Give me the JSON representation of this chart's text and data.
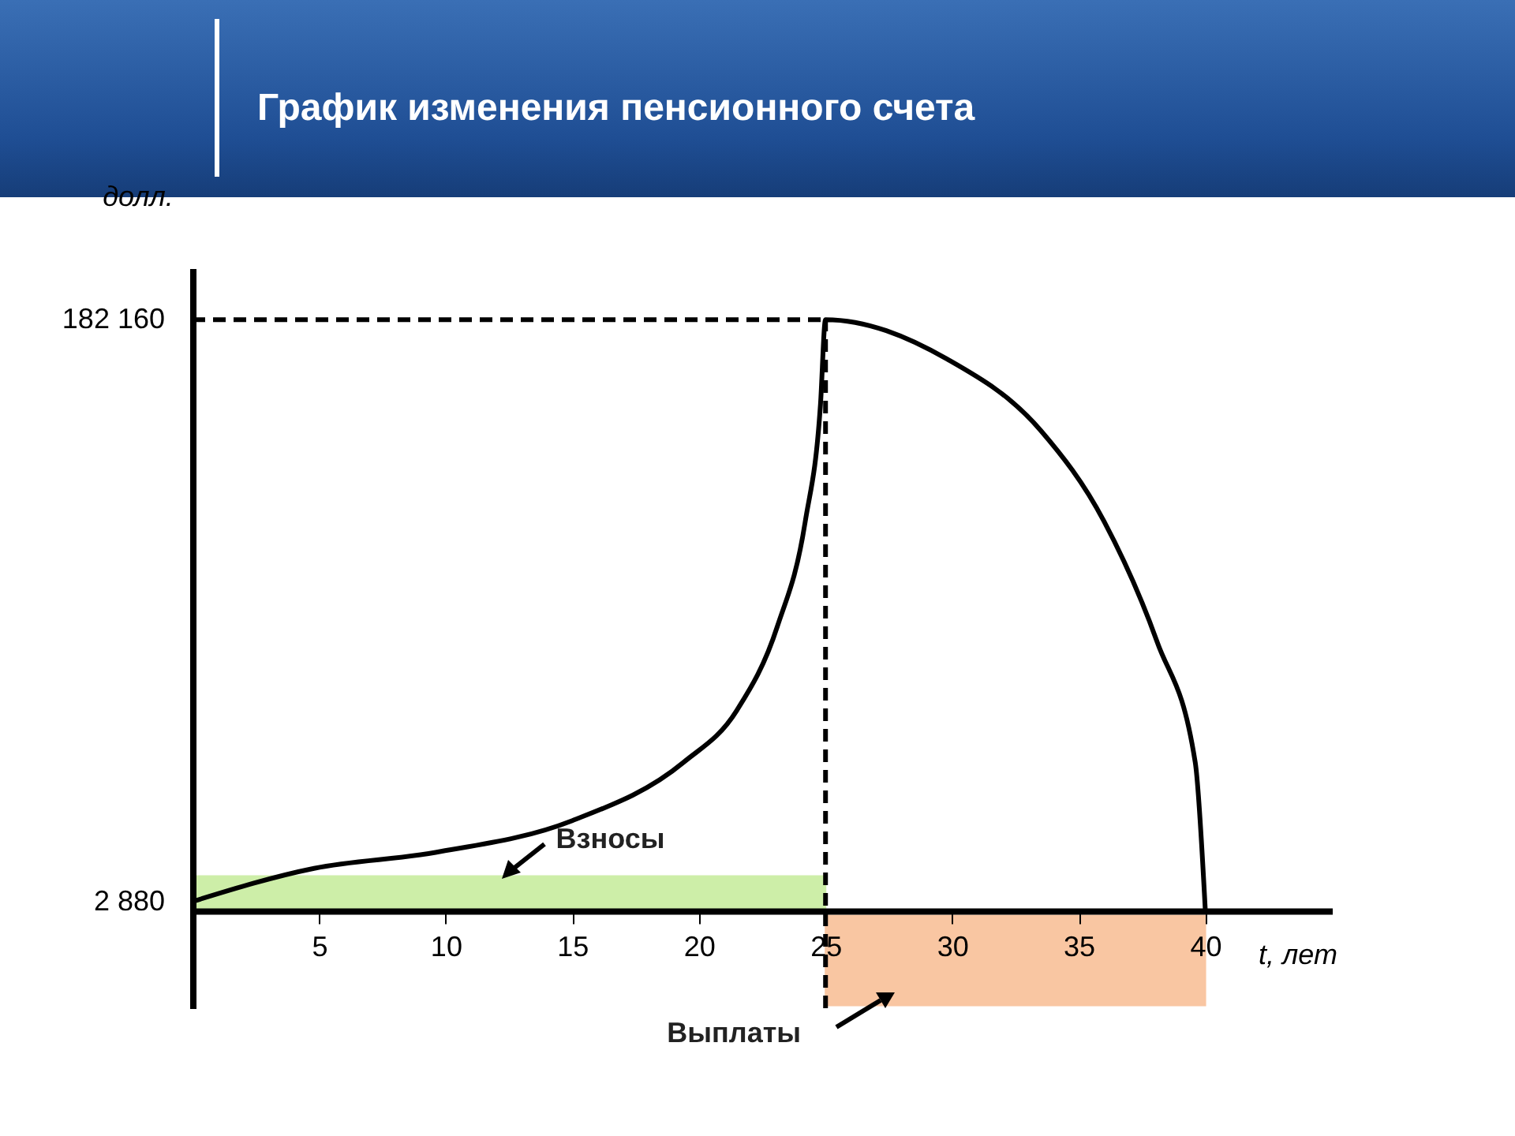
{
  "chart_data": {
    "type": "line",
    "title": "График изменения пенсионного счета",
    "xlabel": "t, лет",
    "ylabel": "долл.",
    "xlim": [
      0,
      45
    ],
    "xticks": [
      5,
      10,
      15,
      20,
      25,
      30,
      35,
      40
    ],
    "ylim": [
      -30000,
      198000
    ],
    "yticks": [
      {
        "value": 2880,
        "label": "2 880"
      },
      {
        "value": 182160,
        "label": "182 160"
      }
    ],
    "series": [
      {
        "color": "#000000",
        "x": [
          0,
          4.8,
          9.6,
          15,
          19.4,
          21.5,
          23.1,
          24.2,
          24.8,
          25,
          29.8,
          33.5,
          36,
          38.1,
          39.6,
          40
        ],
        "values": [
          2880,
          13100,
          18000,
          27800,
          45800,
          61800,
          87700,
          120000,
          156000,
          182160,
          170000,
          148000,
          120000,
          82800,
          45800,
          0
        ]
      }
    ],
    "ref_lines": [
      {
        "axis": "y",
        "value": 182160,
        "line_style": "dashed",
        "color": "#000000"
      },
      {
        "axis": "x",
        "value": 25,
        "line_style": "dashed",
        "color": "#000000"
      }
    ],
    "bands": [
      {
        "axis": "x",
        "from": 0,
        "to": 25,
        "label": "Взносы",
        "color": "#cdeea8"
      },
      {
        "axis": "x",
        "from": 25,
        "to": 40,
        "label": "Выплаты",
        "color": "#f9c6a2"
      }
    ]
  }
}
